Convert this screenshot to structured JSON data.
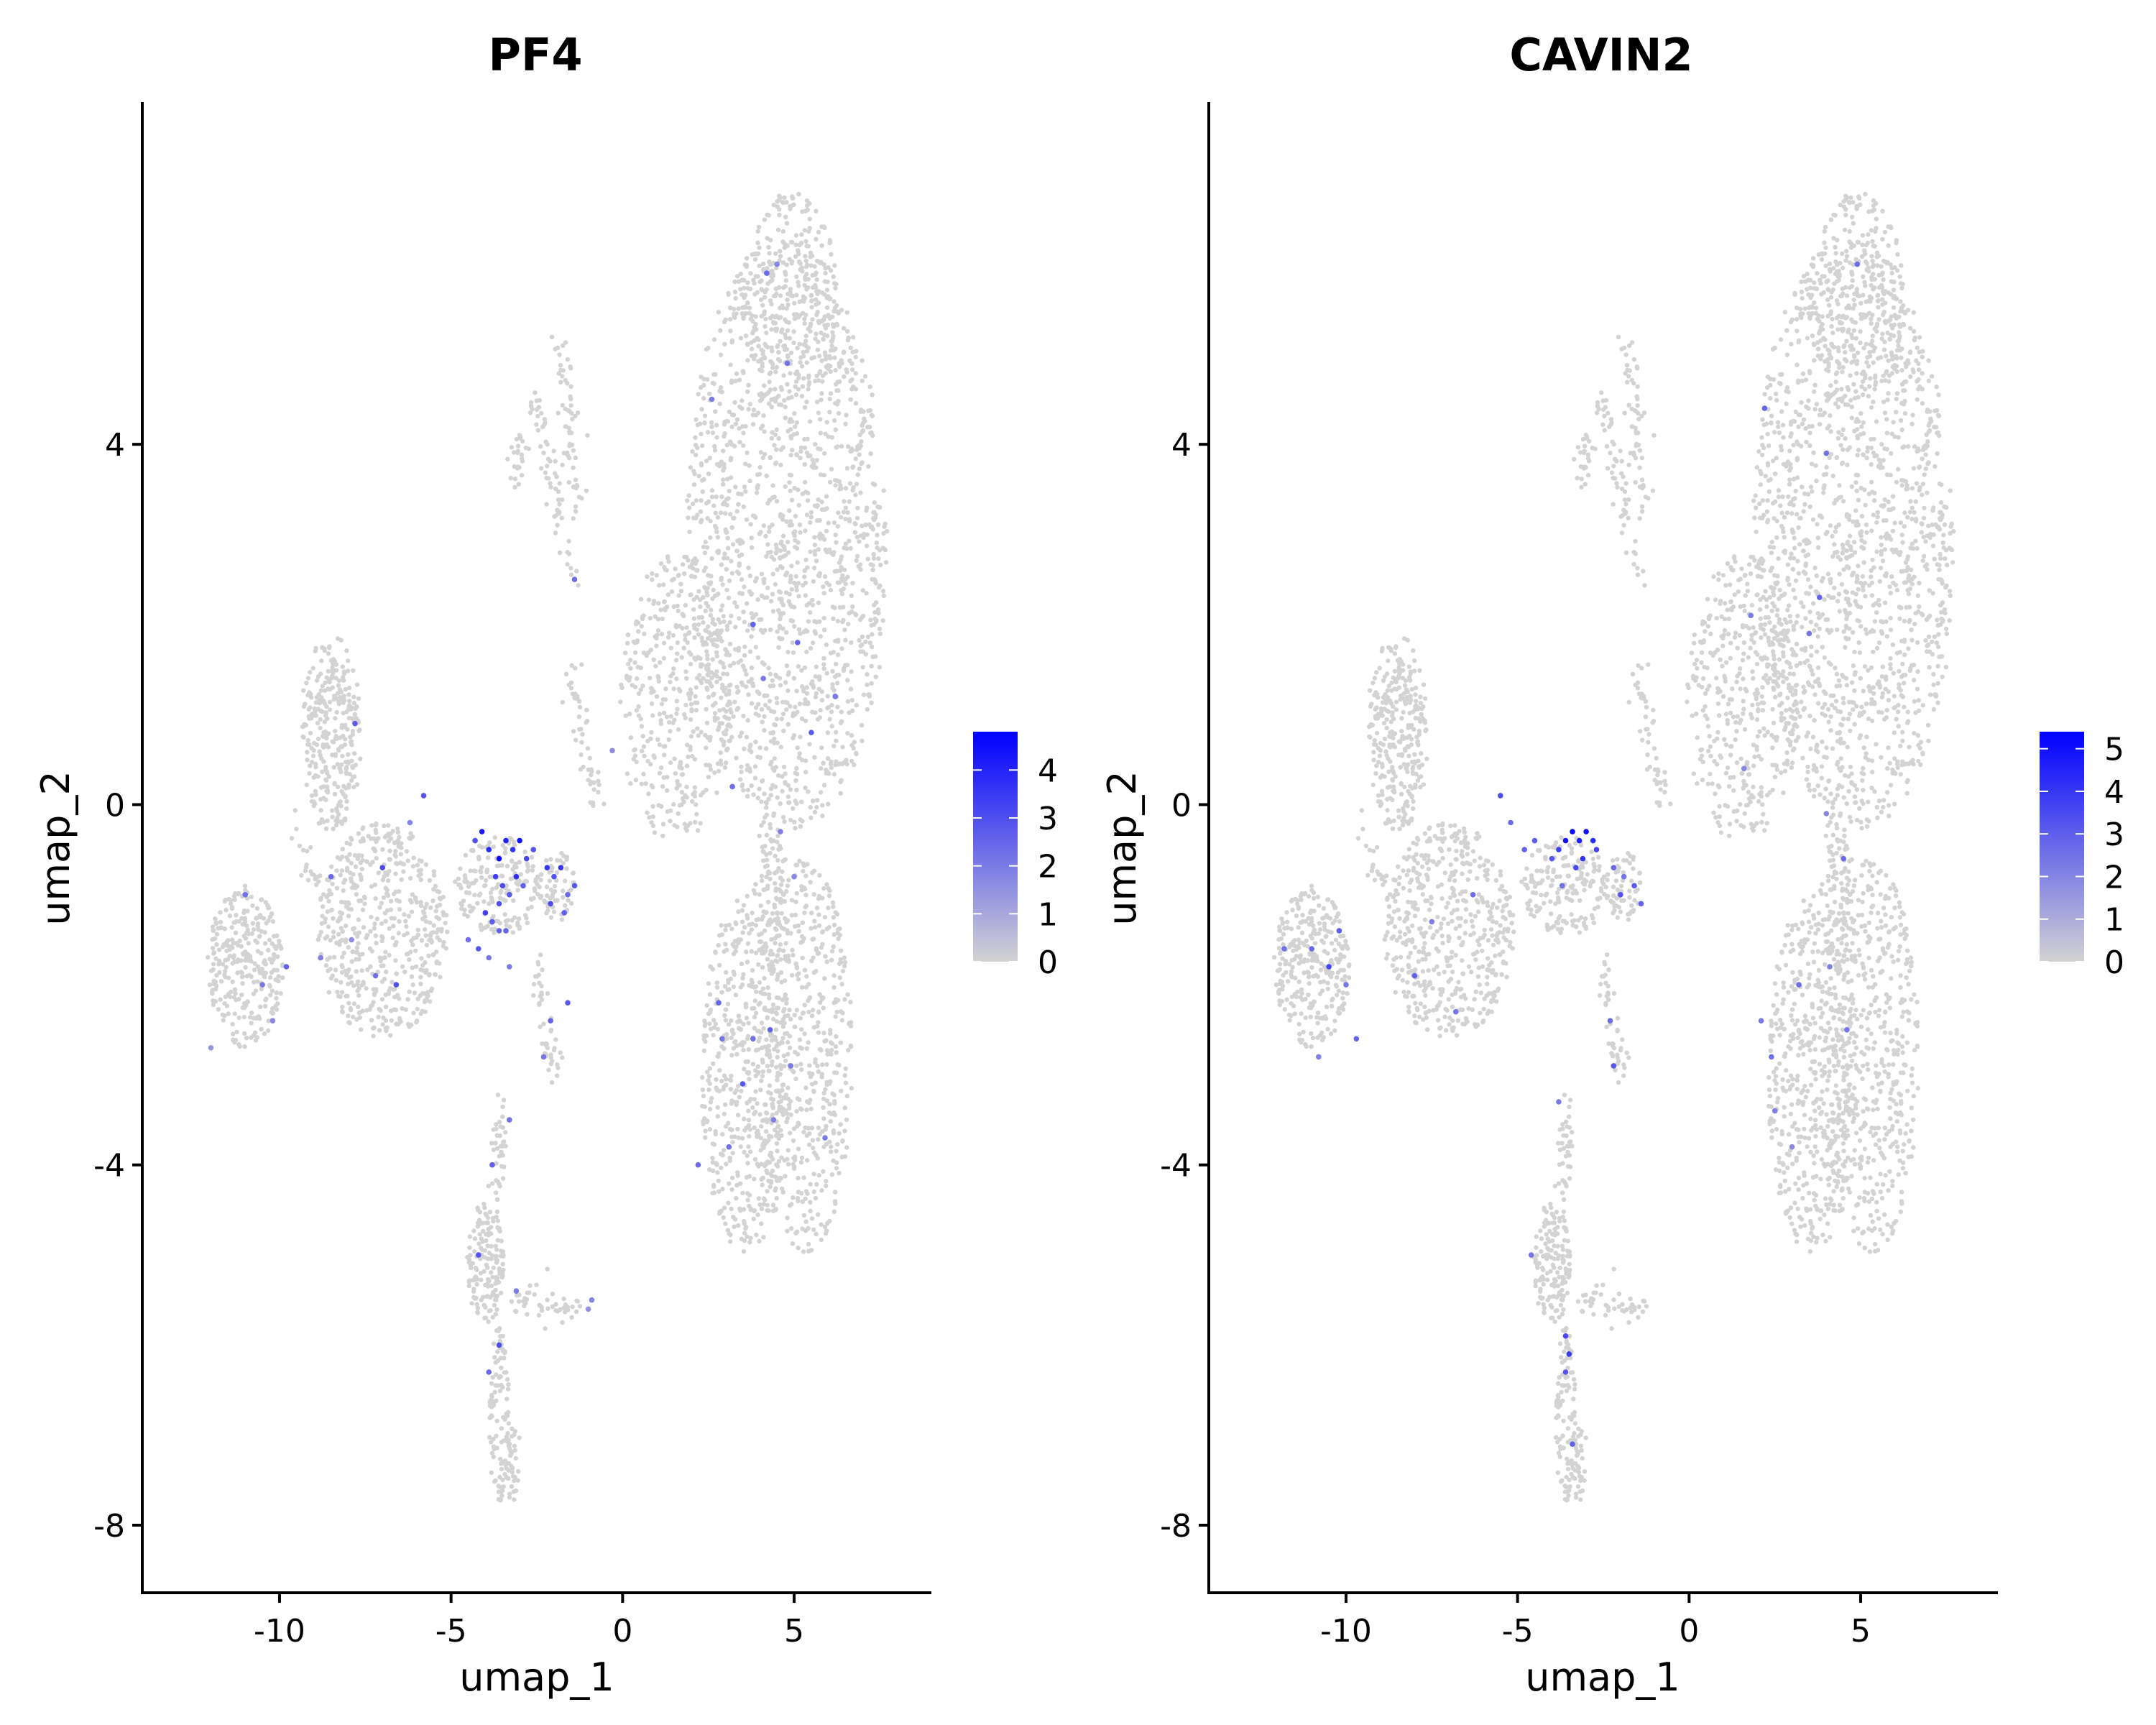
{
  "chart_data": [
    {
      "type": "scatter",
      "title": "PF4",
      "xlabel": "umap_1",
      "ylabel": "umap_2",
      "xlim": [
        -14,
        9
      ],
      "ylim": [
        -8.75,
        7.8
      ],
      "x_ticks": [
        -10,
        -5,
        0,
        5
      ],
      "y_ticks": [
        -8,
        -4,
        0,
        4
      ],
      "grid": false,
      "legend": {
        "position": "right",
        "labels": [
          4,
          3,
          2,
          1,
          0
        ],
        "min": 0,
        "max": 4.8,
        "low_color": "#d3d3d3",
        "high_color": "#0000ff"
      },
      "background_color": "#d3d3d3",
      "expressing_points": {
        "x": [
          -4.3,
          -4.1,
          -3.9,
          -3.6,
          -3.4,
          -3.2,
          -3.0,
          -2.8,
          -2.6,
          -3.7,
          -3.5,
          -3.3,
          -3.1,
          -2.9,
          -4.0,
          -3.8,
          -3.6,
          -3.4,
          -2.2,
          -2.0,
          -1.8,
          -1.6,
          -1.4,
          -2.1,
          -1.7,
          -4.5,
          -4.2,
          -3.9,
          -3.6,
          -3.3,
          -5.8,
          -6.2,
          -7.0,
          -8.5,
          -7.8,
          -7.2,
          -6.6,
          -7.9,
          -8.8,
          -11.0,
          -10.5,
          -9.8,
          -10.2,
          -12.0,
          -1.6,
          -2.1,
          -2.3,
          -3.3,
          -3.8,
          -4.2,
          -3.1,
          -3.6,
          -3.9,
          -1.0,
          -0.9,
          -1.4,
          2.6,
          3.8,
          4.1,
          4.5,
          4.2,
          4.8,
          5.1,
          5.5,
          6.2,
          4.6,
          3.2,
          4.3,
          4.9,
          2.2,
          2.9,
          3.5,
          3.8,
          4.4,
          2.8,
          3.1,
          5.0,
          5.9,
          -0.3
        ],
        "y": [
          -0.4,
          -0.3,
          -0.5,
          -0.6,
          -0.4,
          -0.5,
          -0.4,
          -0.6,
          -0.5,
          -0.8,
          -0.9,
          -1.0,
          -0.8,
          -0.9,
          -1.2,
          -1.3,
          -1.1,
          -1.4,
          -0.7,
          -0.8,
          -0.7,
          -1.0,
          -0.9,
          -1.1,
          -1.2,
          -1.5,
          -1.6,
          -1.7,
          -1.4,
          -1.8,
          0.1,
          -0.2,
          -0.7,
          -0.8,
          0.9,
          -1.9,
          -2.0,
          -1.5,
          -1.7,
          -1.0,
          -2.0,
          -1.8,
          -2.4,
          -2.7,
          -2.2,
          -2.4,
          -2.8,
          -3.5,
          -4.0,
          -5.0,
          -5.4,
          -6.0,
          -6.3,
          -5.6,
          -5.5,
          2.5,
          4.5,
          2.0,
          1.4,
          6.0,
          5.9,
          4.9,
          1.8,
          0.8,
          1.2,
          -0.3,
          0.2,
          -2.5,
          -2.9,
          -4.0,
          -2.6,
          -3.1,
          -2.6,
          -3.5,
          -2.2,
          -3.8,
          -0.8,
          -3.7,
          0.6
        ],
        "values": [
          3.0,
          4.2,
          3.8,
          4.6,
          4.1,
          3.6,
          4.4,
          3.2,
          2.9,
          3.4,
          3.1,
          2.8,
          3.7,
          2.6,
          3.3,
          2.7,
          3.0,
          2.5,
          3.5,
          2.9,
          3.6,
          2.4,
          2.8,
          3.1,
          2.6,
          2.3,
          2.8,
          2.1,
          2.5,
          2.0,
          2.9,
          1.8,
          3.1,
          2.4,
          2.7,
          2.2,
          3.0,
          1.6,
          1.9,
          2.3,
          2.0,
          2.6,
          1.7,
          1.4,
          2.8,
          2.5,
          2.1,
          2.2,
          2.6,
          2.9,
          2.0,
          3.0,
          2.4,
          1.5,
          1.8,
          2.3,
          2.0,
          2.6,
          2.1,
          1.8,
          2.4,
          2.2,
          2.5,
          2.7,
          2.1,
          1.9,
          2.3,
          2.6,
          2.0,
          2.4,
          2.1,
          2.8,
          2.2,
          1.9,
          2.5,
          2.3,
          1.7,
          2.0,
          1.6
        ]
      }
    },
    {
      "type": "scatter",
      "title": "CAVIN2",
      "xlabel": "umap_1",
      "ylabel": "umap_2",
      "xlim": [
        -14,
        9
      ],
      "ylim": [
        -8.75,
        7.8
      ],
      "x_ticks": [
        -10,
        -5,
        0,
        5
      ],
      "y_ticks": [
        -8,
        -4,
        0,
        4
      ],
      "grid": false,
      "legend": {
        "position": "right",
        "labels": [
          5,
          4,
          3,
          2,
          1,
          0
        ],
        "min": 0,
        "max": 5.4,
        "low_color": "#d3d3d3",
        "high_color": "#0000ff"
      },
      "background_color": "#d3d3d3",
      "expressing_points": {
        "x": [
          -3.6,
          -3.4,
          -3.2,
          -3.0,
          -2.8,
          -3.8,
          -4.0,
          -3.3,
          -3.1,
          -2.7,
          -4.5,
          -5.2,
          -5.5,
          -4.8,
          -3.7,
          -1.6,
          -1.4,
          -1.9,
          -2.2,
          -2.0,
          -6.3,
          -7.5,
          -8.0,
          -6.8,
          -10.2,
          -10.5,
          -11.0,
          -10.0,
          -9.7,
          -11.8,
          -10.8,
          -2.3,
          -2.2,
          -3.6,
          -3.5,
          -3.6,
          -3.4,
          -3.8,
          -4.6,
          2.2,
          4.0,
          3.8,
          4.9,
          1.8,
          3.5,
          4.5,
          2.1,
          2.4,
          4.1,
          3.2,
          1.6,
          4.6,
          2.5,
          4.0,
          3.0
        ],
        "y": [
          -0.4,
          -0.3,
          -0.4,
          -0.3,
          -0.4,
          -0.5,
          -0.6,
          -0.7,
          -0.6,
          -0.5,
          -0.4,
          -0.2,
          0.1,
          -0.5,
          -0.9,
          -0.9,
          -1.1,
          -0.8,
          -0.7,
          -1.0,
          -1.0,
          -1.3,
          -1.9,
          -2.3,
          -1.4,
          -1.8,
          -1.6,
          -2.0,
          -2.6,
          -1.6,
          -2.8,
          -2.4,
          -2.9,
          -5.9,
          -6.1,
          -6.3,
          -7.1,
          -3.3,
          -5.0,
          4.4,
          3.9,
          2.3,
          6.0,
          2.1,
          1.9,
          -0.6,
          -2.4,
          -2.8,
          -1.8,
          -2.0,
          0.4,
          -2.5,
          -3.4,
          -0.1,
          -3.8
        ],
        "values": [
          4.9,
          5.2,
          4.6,
          5.0,
          4.3,
          3.8,
          3.2,
          3.5,
          4.1,
          3.7,
          3.0,
          2.6,
          3.4,
          2.8,
          2.5,
          3.1,
          2.9,
          2.4,
          2.7,
          3.3,
          2.6,
          2.2,
          2.9,
          2.4,
          3.0,
          3.6,
          2.7,
          2.3,
          2.8,
          2.5,
          2.1,
          2.7,
          3.2,
          3.5,
          3.9,
          3.2,
          2.9,
          2.3,
          2.4,
          2.8,
          2.5,
          2.9,
          2.6,
          2.2,
          2.4,
          2.7,
          2.3,
          2.5,
          2.1,
          2.6,
          2.0,
          2.4,
          2.2,
          2.0,
          1.9
        ]
      }
    }
  ]
}
